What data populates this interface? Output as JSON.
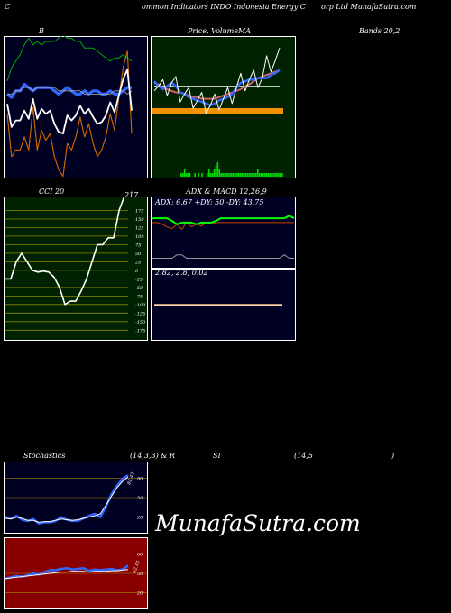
{
  "header": {
    "left_c": "C",
    "title_a": "ommon  Indicators INDO Indonesia  Energy C",
    "title_b": "orp Ltd MunafaSutra.com"
  },
  "labels": {
    "bands_b": "B",
    "price_vol": "Price,  Volume",
    "ma": "MA",
    "bands_right": "Bands 20,2",
    "cci": "CCI 20",
    "cci_value": "217",
    "adx_macd": "ADX  & MACD 12,26,9",
    "adx_text": "ADX: 6.67 +DY: 50  -DY: 43.75",
    "macd_text": "2.82,  2.8,  0.02",
    "stoch": "Stochastics",
    "stoch_params": "(14,3,3) & R",
    "rsi": "SI",
    "rsi_params": "(14,5",
    "rsi_close": ")",
    "stoch_value": "84.42",
    "rsi_value": "62.15"
  },
  "watermark": "MunafaSutra.com",
  "colors": {
    "bands_bg": "#000022",
    "price_bg": "#002200",
    "cci_bg": "#002200",
    "adx_bg": "#000022",
    "stoch_bg": "#000022",
    "rsi_bg": "#880000"
  },
  "chart_data": [
    {
      "type": "line",
      "name": "bollinger-bands",
      "series": [
        {
          "values": [
            91,
            78,
            80,
            80,
            84,
            80,
            93,
            80,
            86,
            83,
            85,
            78,
            74,
            72,
            82,
            80,
            84,
            90,
            84,
            88,
            82,
            78,
            80,
            84,
            91,
            86,
            96,
            105,
            110,
            85
          ]
        },
        {
          "values": [
            97,
            96,
            98,
            98,
            100,
            99,
            98,
            99,
            99,
            99,
            99,
            98,
            97,
            98,
            99,
            98,
            97,
            97,
            98,
            97,
            98,
            98,
            97,
            97,
            98,
            97,
            97,
            98,
            99,
            99
          ]
        },
        {
          "values": [
            97,
            97,
            98,
            98,
            99,
            99,
            98,
            99,
            99,
            99,
            99,
            99,
            98,
            98,
            98,
            98,
            98,
            98,
            97,
            97,
            97,
            97,
            97,
            97,
            97,
            98,
            98,
            98,
            97,
            98
          ]
        },
        {
          "values": [
            101,
            105,
            107,
            109,
            112,
            114,
            112,
            113,
            112,
            113,
            113,
            113,
            114,
            115,
            114,
            114,
            113,
            113,
            111,
            111,
            111,
            110,
            109,
            108,
            107,
            108,
            108,
            109,
            108,
            107
          ]
        }
      ],
      "ylim": [
        73,
        113
      ]
    },
    {
      "type": "line",
      "name": "price-volume-ma",
      "series": [
        {
          "values": [
            55,
            52,
            50,
            52,
            54,
            52,
            48,
            47,
            45,
            44,
            43,
            42,
            41,
            40,
            41,
            43,
            44,
            45,
            47,
            51,
            54,
            55,
            56,
            56,
            57,
            57,
            57,
            59,
            60,
            62
          ]
        },
        {
          "values": [
            54,
            53,
            51,
            50,
            49,
            48,
            48,
            47,
            46,
            45,
            45,
            44,
            44,
            44,
            44,
            45,
            46,
            47,
            48,
            49,
            50,
            52,
            53,
            55,
            57,
            58,
            59,
            60,
            61,
            62
          ]
        },
        {
          "values": [
            52,
            52,
            52,
            52,
            52,
            52,
            52,
            52,
            52,
            52,
            52,
            52,
            52,
            52,
            52,
            52,
            52,
            52,
            52,
            52,
            52,
            52,
            52,
            52,
            52,
            52,
            52,
            52,
            52,
            52
          ]
        }
      ],
      "volume": [
        0,
        0,
        0,
        0,
        0,
        0,
        0,
        0,
        0,
        0,
        0,
        0,
        0,
        0,
        0,
        1,
        1,
        2,
        1,
        1,
        1,
        0,
        0,
        1,
        0,
        1,
        0,
        1,
        0,
        0,
        1,
        2,
        1,
        1,
        2,
        3,
        4,
        2,
        1,
        1,
        1,
        1,
        1,
        1,
        1,
        1,
        1,
        1,
        1,
        1,
        1,
        1,
        1,
        1,
        1,
        1,
        1,
        1,
        1,
        2,
        1,
        1,
        1,
        1,
        1,
        1,
        1,
        1,
        1,
        1,
        1,
        1,
        1,
        1
      ],
      "ylim": [
        20,
        80
      ]
    },
    {
      "type": "line",
      "name": "cci",
      "tick_labels": [
        "175",
        "150",
        "125",
        "100",
        "75",
        "50",
        "25",
        "0",
        "-25",
        "-50",
        "-75",
        "-100",
        "-125",
        "-150",
        "-175"
      ],
      "values": [
        -25,
        -25,
        25,
        50,
        25,
        0,
        -5,
        -2,
        -5,
        -20,
        -50,
        -100,
        -90,
        -90,
        -60,
        -25,
        25,
        75,
        75,
        95,
        95,
        175,
        217
      ],
      "ylim": [
        -190,
        200
      ]
    },
    {
      "type": "line",
      "name": "adx-macd",
      "series": [
        {
          "values": [
            55,
            55,
            55,
            55,
            52,
            48,
            50,
            50,
            50,
            48,
            50,
            50,
            50,
            52,
            55,
            55,
            55,
            55,
            55,
            55,
            55,
            55,
            55,
            55,
            55,
            55,
            55,
            55,
            58,
            55
          ]
        },
        {
          "values": [
            50,
            50,
            48,
            45,
            43,
            48,
            42,
            50,
            45,
            48,
            46,
            50,
            48,
            50,
            50,
            50,
            50,
            50,
            50,
            50,
            50,
            50,
            50,
            50,
            50,
            50,
            50,
            50,
            50,
            50
          ]
        },
        {
          "values": [
            3,
            3,
            3,
            3,
            3,
            3,
            3,
            3,
            3,
            3,
            3,
            3,
            3,
            3,
            3,
            3,
            3,
            3,
            3,
            3,
            3,
            3,
            3,
            3,
            3,
            3,
            3,
            3,
            3,
            3
          ]
        }
      ],
      "macd": [
        2.82,
        2.8,
        0.02
      ],
      "ylim": [
        0,
        70
      ]
    },
    {
      "type": "line",
      "name": "stochastics",
      "tick_labels": [
        "80",
        "50",
        "20"
      ],
      "series": [
        {
          "values": [
            20,
            18,
            22,
            16,
            14,
            17,
            10,
            12,
            12,
            14,
            20,
            16,
            14,
            14,
            18,
            22,
            25,
            20,
            35,
            55,
            68,
            79,
            84.42
          ]
        },
        {
          "values": [
            18,
            17,
            20,
            18,
            15,
            15,
            12,
            13,
            13,
            15,
            17,
            16,
            15,
            16,
            18,
            20,
            22,
            25,
            38,
            52,
            65,
            75,
            82
          ]
        }
      ],
      "ylim": [
        0,
        100
      ]
    },
    {
      "type": "line",
      "name": "rsi",
      "tick_labels": [
        "80",
        "50",
        "20"
      ],
      "series": [
        {
          "values": [
            42,
            44,
            46,
            45,
            47,
            50,
            48,
            52,
            55,
            55,
            57,
            58,
            56,
            57,
            58,
            54,
            56,
            55,
            56,
            57,
            55,
            56,
            62.15
          ]
        },
        {
          "values": [
            42,
            43,
            44,
            45,
            46,
            47,
            48,
            49,
            50,
            51,
            52,
            52,
            53,
            53,
            53,
            52,
            53,
            53,
            53,
            54,
            54,
            55,
            56
          ]
        }
      ],
      "ylim": [
        0,
        100
      ]
    }
  ]
}
